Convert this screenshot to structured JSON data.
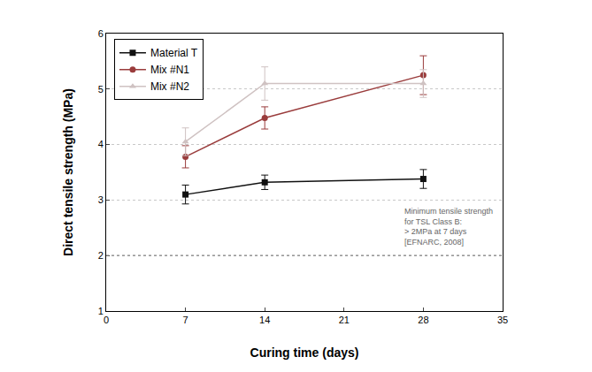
{
  "chart_data": {
    "type": "line",
    "x_label": "Curing time (days)",
    "y_label": "Direct tensile strength (MPa)",
    "xlim": [
      0,
      35
    ],
    "xticks": [
      0,
      7,
      14,
      21,
      28,
      35
    ],
    "ylim": [
      1,
      6
    ],
    "yticks": [
      1,
      2,
      3,
      4,
      5,
      6
    ],
    "grid": true,
    "legend": "top-left",
    "x": [
      7,
      14,
      28
    ],
    "series": [
      {
        "name": "Material T",
        "color": "#111111",
        "marker": "square",
        "values": [
          3.1,
          3.32,
          3.38
        ],
        "errors": [
          0.17,
          0.13,
          0.17
        ]
      },
      {
        "name": "Mix #N1",
        "color": "#9a3c3c",
        "marker": "circle",
        "values": [
          3.78,
          4.48,
          5.25
        ],
        "errors": [
          0.2,
          0.2,
          0.35
        ]
      },
      {
        "name": "Mix #N2",
        "color": "#cfc2c2",
        "marker": "triangle-up",
        "values": [
          4.05,
          5.1,
          5.1
        ],
        "errors": [
          0.25,
          0.3,
          0.25
        ]
      }
    ],
    "annotations": [
      {
        "text": "Minimum tensile strength\nfor TSL Class B:\n> 2MPa at 7 days\n[EFNARC, 2008]",
        "y": 2,
        "line_style": "dot",
        "color": "#888888"
      }
    ]
  }
}
